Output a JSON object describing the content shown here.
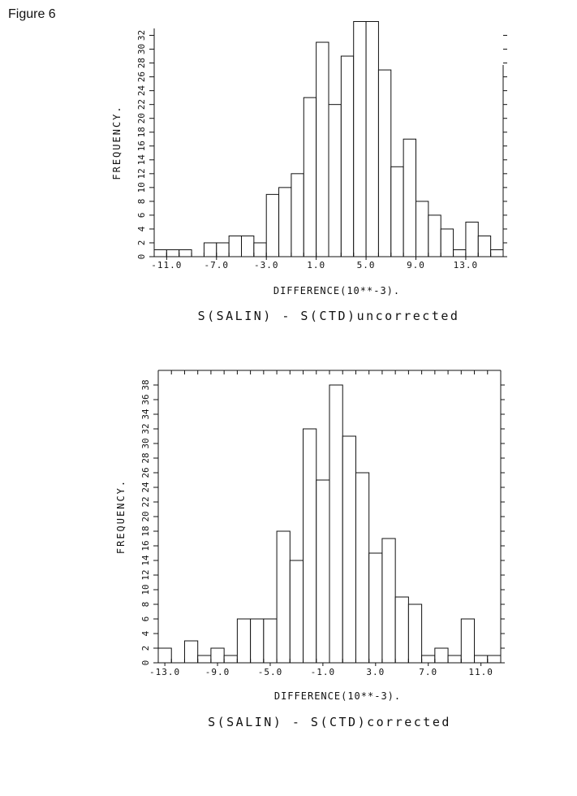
{
  "figure_label": "Figure 6",
  "chart_data": [
    {
      "type": "bar",
      "id": "uncorrected",
      "bin_start": -12,
      "bin_width": 1,
      "values": [
        1,
        1,
        1,
        0,
        2,
        2,
        3,
        3,
        2,
        9,
        10,
        12,
        23,
        31,
        22,
        29,
        34,
        34,
        27,
        13,
        17,
        8,
        6,
        4,
        1,
        5,
        3,
        1
      ],
      "x_tick_values": [
        -11,
        -7,
        -3,
        1,
        5,
        9,
        13
      ],
      "x_tick_labels": [
        "-11.0",
        "-7.0",
        "-3.0",
        "1.0",
        "5.0",
        "9.0",
        "13.0"
      ],
      "y_tick_labels": [
        "0",
        "2",
        "4",
        "6",
        "8",
        "10",
        "12",
        "14",
        "16",
        "18",
        "20",
        "22",
        "24",
        "26",
        "28",
        "30",
        "32"
      ],
      "ylim": [
        0,
        33
      ],
      "ylabel": "FREQUENCY.",
      "xlabel": "DIFFERENCE(10**-3).",
      "caption": "S(SALIN) - S(CTD)uncorrected",
      "box": "open-right",
      "grid": false
    },
    {
      "type": "bar",
      "id": "corrected",
      "bin_start": -13.5,
      "bin_width": 1,
      "values": [
        2,
        0,
        3,
        1,
        2,
        1,
        6,
        6,
        6,
        18,
        14,
        32,
        25,
        38,
        31,
        26,
        15,
        17,
        9,
        8,
        1,
        2,
        1,
        6,
        1,
        1
      ],
      "x_tick_values": [
        -13,
        -9,
        -5,
        -1,
        3,
        7,
        11
      ],
      "x_tick_labels": [
        "-13.0",
        "-9.0",
        "-5.0",
        "-1.0",
        "3.0",
        "7.0",
        "11.0"
      ],
      "y_tick_labels": [
        "0",
        "2",
        "4",
        "6",
        "8",
        "10",
        "12",
        "14",
        "16",
        "18",
        "20",
        "22",
        "24",
        "26",
        "28",
        "30",
        "32",
        "34",
        "36",
        "38"
      ],
      "ylim": [
        0,
        40
      ],
      "ylabel": "FREQUENCY.",
      "xlabel": "DIFFERENCE(10**-3).",
      "caption": "S(SALIN) - S(CTD)corrected",
      "box": "closed",
      "grid": false
    }
  ]
}
